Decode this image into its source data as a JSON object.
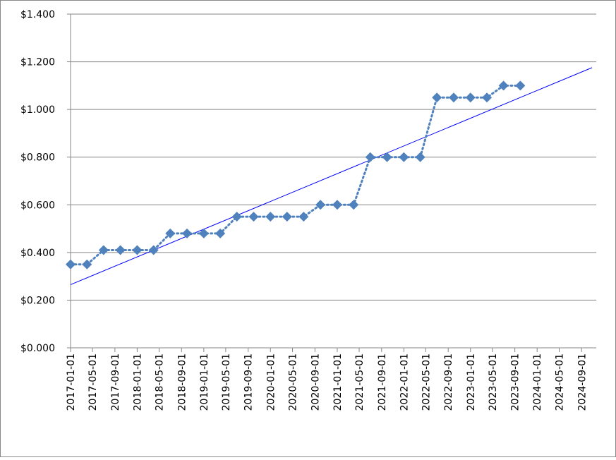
{
  "chart_data": {
    "type": "line",
    "x": [
      "2017-01-01",
      "2017-04-01",
      "2017-07-01",
      "2017-10-01",
      "2018-01-01",
      "2018-04-01",
      "2018-07-01",
      "2018-10-01",
      "2019-01-01",
      "2019-04-01",
      "2019-07-01",
      "2019-10-01",
      "2020-01-01",
      "2020-04-01",
      "2020-07-01",
      "2020-10-01",
      "2021-01-01",
      "2021-04-01",
      "2021-07-01",
      "2021-10-01",
      "2022-01-01",
      "2022-04-01",
      "2022-07-01",
      "2022-10-01",
      "2023-01-01",
      "2023-04-01",
      "2023-07-01",
      "2023-10-01"
    ],
    "series": [
      {
        "color": "#4f81bd",
        "marker": "diamond",
        "line_style": "dotted",
        "values": [
          0.35,
          0.35,
          0.41,
          0.41,
          0.41,
          0.41,
          0.48,
          0.48,
          0.48,
          0.48,
          0.55,
          0.55,
          0.55,
          0.55,
          0.55,
          0.6,
          0.6,
          0.6,
          0.8,
          0.8,
          0.8,
          0.8,
          1.05,
          1.05,
          1.05,
          1.05,
          1.1,
          1.1
        ]
      }
    ],
    "trendline": {
      "type": "linear",
      "color": "#0000ff"
    },
    "xlim": [
      "2017-01-01",
      "2024-11-20"
    ],
    "xticks": [
      "2017-01-01",
      "2017-05-01",
      "2017-09-01",
      "2018-01-01",
      "2018-05-01",
      "2018-09-01",
      "2019-01-01",
      "2019-05-01",
      "2019-09-01",
      "2020-01-01",
      "2020-05-01",
      "2020-09-01",
      "2021-01-01",
      "2021-05-01",
      "2021-09-01",
      "2022-01-01",
      "2022-05-01",
      "2022-09-01",
      "2023-01-01",
      "2023-05-01",
      "2023-09-01",
      "2024-01-01",
      "2024-05-01",
      "2024-09-01"
    ],
    "ylim": [
      0,
      1.4
    ],
    "yticks": [
      {
        "value": 0,
        "label": "$0.000"
      },
      {
        "value": 0.2,
        "label": "$0.200"
      },
      {
        "value": 0.4,
        "label": "$0.400"
      },
      {
        "value": 0.6,
        "label": "$0.600"
      },
      {
        "value": 0.8,
        "label": "$0.800"
      },
      {
        "value": 1.0,
        "label": "$1.000"
      },
      {
        "value": 1.2,
        "label": "$1.200"
      },
      {
        "value": 1.4,
        "label": "$1.400"
      }
    ],
    "grid": true
  }
}
